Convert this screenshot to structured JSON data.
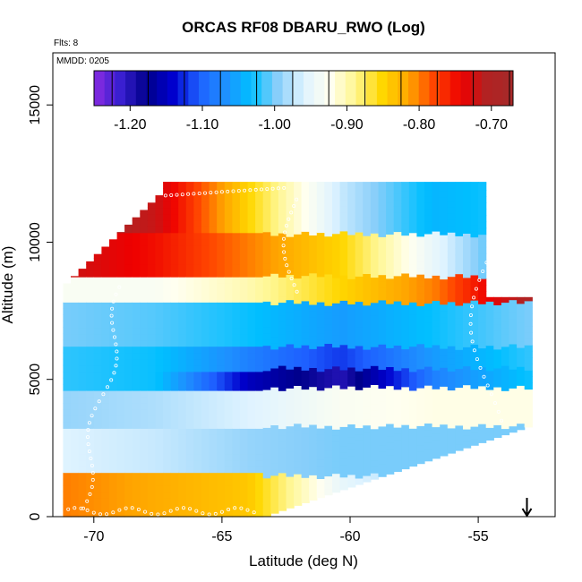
{
  "chart_data": {
    "type": "heatmap",
    "title": "ORCAS RF08 DBARU_RWO (Log)",
    "subtitle_left": "Flts: 8",
    "inset_label": "MMDD: 0205",
    "xlabel": "Latitude (deg N)",
    "ylabel": "Altitude (m)",
    "xlim": [
      -71.6,
      -52.0
    ],
    "ylim": [
      0,
      16900
    ],
    "x_ticks": [
      -70,
      -65,
      -60,
      -55
    ],
    "x_tick_labels": [
      "-70",
      "-65",
      "-60",
      "-55"
    ],
    "y_ticks": [
      0,
      5000,
      10000,
      15000
    ],
    "y_tick_labels": [
      "0",
      "5000",
      "10000",
      "15000"
    ],
    "colorbar": {
      "range": [
        -1.25,
        -0.67
      ],
      "ticks": [
        -1.2,
        -1.1,
        -1.0,
        -0.9,
        -0.8,
        -0.7
      ],
      "tick_labels": [
        "-1.20",
        "-1.10",
        "-1.00",
        "-0.90",
        "-0.80",
        "-0.70"
      ],
      "colors": [
        "#8a2be2",
        "#3a1fd0",
        "#00008b",
        "#0000cd",
        "#1e5fff",
        "#1e90ff",
        "#00bfff",
        "#87cefa",
        "#dff3ff",
        "#fffff0",
        "#fff68f",
        "#ffd700",
        "#ffa500",
        "#ff4500",
        "#ee0000",
        "#b22222",
        "#a52a2a"
      ]
    },
    "domain": {
      "lat_south": -71.2,
      "lat_north": -53.1,
      "alt_top_south": 8500,
      "alt_top_south_high": 11800,
      "alt_top_north": 12200,
      "alt_top_north_low": 8000,
      "alt_bottom_north": 3300
    },
    "layers": [
      {
        "alt": [
          10300,
          11900
        ],
        "values": [
          -0.68,
          -0.72,
          -0.85,
          -0.97,
          -1.04,
          -1.02
        ]
      },
      {
        "alt": [
          8800,
          10300
        ],
        "values": [
          -0.72,
          -0.75,
          -0.8,
          -0.85,
          -0.95,
          -1.05
        ]
      },
      {
        "alt": [
          7900,
          8100
        ],
        "values": [
          -0.93,
          -0.93,
          -0.9,
          -0.85,
          -0.8,
          -0.7
        ]
      },
      {
        "alt": [
          6200,
          7800
        ],
        "values": [
          -1.0,
          -1.01,
          -1.03,
          -1.06,
          -1.03,
          -1.0
        ]
      },
      {
        "alt": [
          5500,
          6200
        ],
        "values": [
          -1.02,
          -1.03,
          -1.08,
          -1.12,
          -1.06,
          -1.02
        ]
      },
      {
        "alt": [
          4700,
          5200
        ],
        "values": [
          -1.02,
          -1.03,
          -1.15,
          -1.2,
          -1.08,
          -1.03
        ]
      },
      {
        "alt": [
          3300,
          4700
        ],
        "values": [
          -0.99,
          -0.98,
          -0.96,
          -0.93,
          -0.92,
          -0.92
        ]
      },
      {
        "alt": [
          1500,
          3300
        ],
        "values": [
          -0.96,
          -0.97,
          -0.99,
          -1.0,
          -1.0,
          -1.0
        ]
      },
      {
        "alt": [
          0,
          1500
        ],
        "values": [
          -0.8,
          -0.82,
          -0.84,
          -0.95,
          -1.0,
          -1.0
        ]
      }
    ],
    "flight_track": "white circle markers along the flight path",
    "arrow": {
      "x": -53.1,
      "direction": "down"
    }
  }
}
